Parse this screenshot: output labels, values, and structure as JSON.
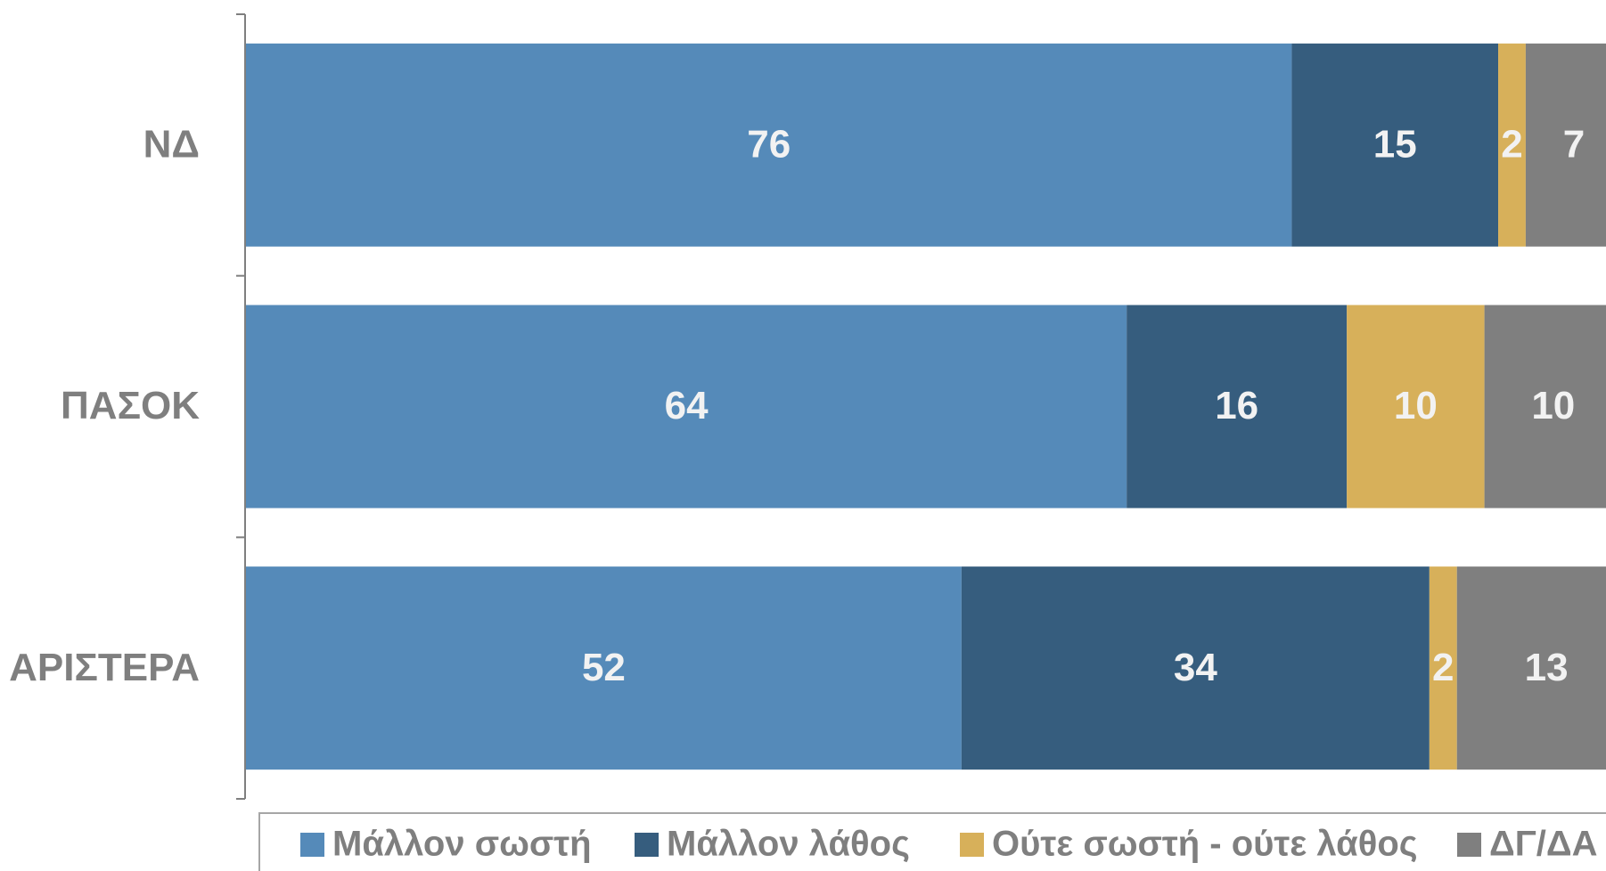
{
  "chart_data": {
    "type": "stacked-bar-horizontal",
    "categories": [
      "ΝΔ",
      "ΠΑΣΟΚ",
      "ΑΡΙΣΤΕΡΑ"
    ],
    "series": [
      {
        "name": "Μάλλον σωστή",
        "color": "#558ab9",
        "values": [
          76,
          64,
          52
        ]
      },
      {
        "name": "Μάλλον λάθος",
        "color": "#365d7e",
        "values": [
          15,
          16,
          34
        ]
      },
      {
        "name": "Ούτε σωστή - ούτε λάθος",
        "color": "#d7b05a",
        "values": [
          2,
          10,
          2
        ]
      },
      {
        "name": "ΔΓ/ΔΑ",
        "color": "#7f7f7f",
        "values": [
          7,
          10,
          13
        ]
      }
    ],
    "legend": "bottom"
  }
}
